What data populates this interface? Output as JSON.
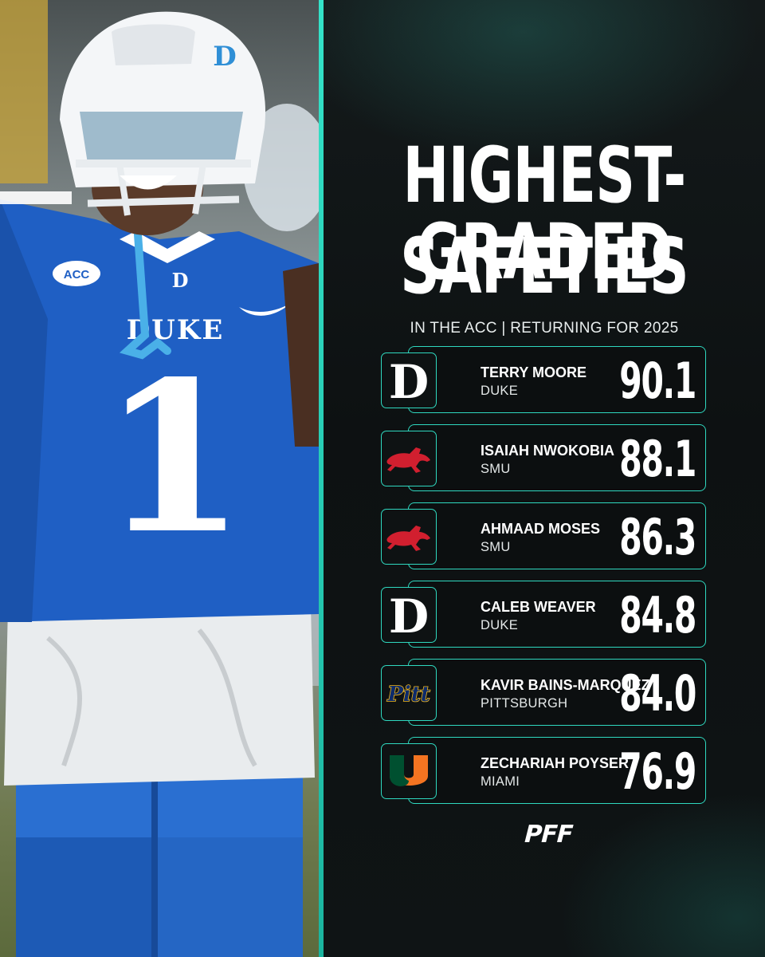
{
  "title": {
    "line1": "HIGHEST-GRADED",
    "line2": "SAFETIES"
  },
  "subtitle": "IN THE ACC | RETURNING FOR 2025",
  "photo_text": {
    "jersey_wordmark": "DUKE",
    "jersey_number": "1",
    "patch": "ACC"
  },
  "players": [
    {
      "name": "TERRY MOORE",
      "school": "DUKE",
      "grade": "90.1",
      "logo": "duke-d-logo"
    },
    {
      "name": "ISAIAH NWOKOBIA",
      "school": "SMU",
      "grade": "88.1",
      "logo": "smu-mustang-logo"
    },
    {
      "name": "AHMAAD MOSES",
      "school": "SMU",
      "grade": "86.3",
      "logo": "smu-mustang-logo"
    },
    {
      "name": "CALEB WEAVER",
      "school": "DUKE",
      "grade": "84.8",
      "logo": "duke-d-logo"
    },
    {
      "name": "KAVIR BAINS-MARQUEZ",
      "school": "PITTSBURGH",
      "grade": "84.0",
      "logo": "pitt-script-logo"
    },
    {
      "name": "ZECHARIAH POYSER",
      "school": "MIAMI",
      "grade": "76.9",
      "logo": "miami-u-logo"
    }
  ],
  "brand": "PFF",
  "colors": {
    "accent": "#2fd8bf",
    "background": "#0d1112",
    "duke_blue": "#1f5fc4",
    "smu_red": "#d11f2f",
    "pitt_navy": "#0d2b6b",
    "pitt_gold": "#f2b81c",
    "miami_orange": "#f47421",
    "miami_green": "#005030"
  }
}
